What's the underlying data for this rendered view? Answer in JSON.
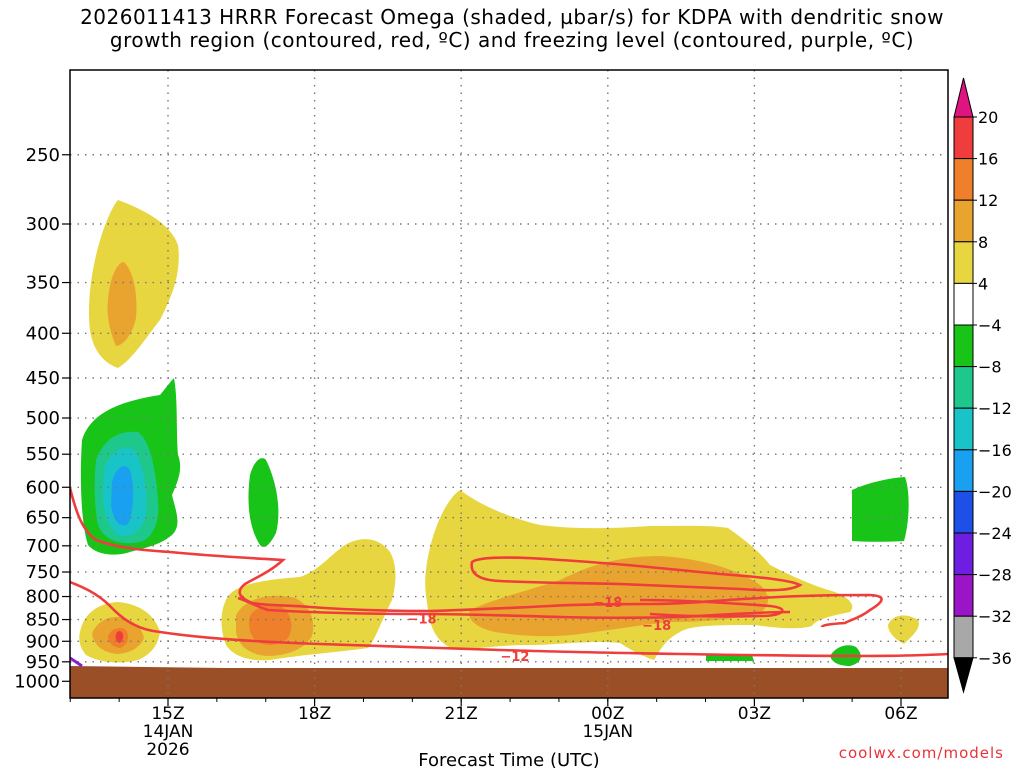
{
  "title": {
    "line1": "2026011413 HRRR Forecast Omega (shaded, µbar/s) for KDPA with dendritic snow",
    "line2": "growth region (contoured, red, ºC) and freezing level (contoured, purple, ºC)"
  },
  "credit": "coolwx.com/models",
  "colors": {
    "ground": "#9b4f26",
    "contour_red": "#ef3c3c",
    "contour_purple": "#8a20c8",
    "grid": "#777777"
  },
  "chart_data": {
    "type": "heatmap",
    "xlabel": "Forecast Time (UTC)",
    "ylabel": "",
    "x_ticks": [
      {
        "label": "15Z",
        "sub1": "14JAN",
        "sub2": "2026",
        "hour": 15
      },
      {
        "label": "18Z",
        "sub1": "",
        "sub2": "",
        "hour": 18
      },
      {
        "label": "21Z",
        "sub1": "",
        "sub2": "",
        "hour": 21
      },
      {
        "label": "00Z",
        "sub1": "15JAN",
        "sub2": "",
        "hour": 24
      },
      {
        "label": "03Z",
        "sub1": "",
        "sub2": "",
        "hour": 27
      },
      {
        "label": "06Z",
        "sub1": "",
        "sub2": "",
        "hour": 30
      }
    ],
    "x_range_hours": [
      13,
      31
    ],
    "y_ticks": [
      250,
      300,
      350,
      400,
      450,
      500,
      550,
      600,
      650,
      700,
      750,
      800,
      850,
      900,
      950,
      1000
    ],
    "y_scale": "log-pressure",
    "grid": true,
    "colorbar": {
      "labels": [
        "20",
        "16",
        "12",
        "8",
        "4",
        "−4",
        "−8",
        "−12",
        "−16",
        "−20",
        "−24",
        "−28",
        "−32",
        "−36"
      ],
      "colors": [
        "#ef3c3c",
        "#ef7f2a",
        "#e8a42f",
        "#e8d640",
        "#ffffff",
        "#18c418",
        "#1ec88c",
        "#19c4c8",
        "#1aa0f0",
        "#1e50e8",
        "#6e1ee0",
        "#9a14c8",
        "#a8a8a8"
      ],
      "top_arrow": "#e01480",
      "bottom_arrow": "#000000"
    },
    "contour_labels": [
      {
        "text": "−18",
        "hour": 20.2,
        "p": 848
      },
      {
        "text": "−18",
        "hour": 24.0,
        "p": 812
      },
      {
        "text": "−18",
        "hour": 25.0,
        "p": 862
      },
      {
        "text": "−12",
        "hour": 22.1,
        "p": 935
      }
    ]
  }
}
